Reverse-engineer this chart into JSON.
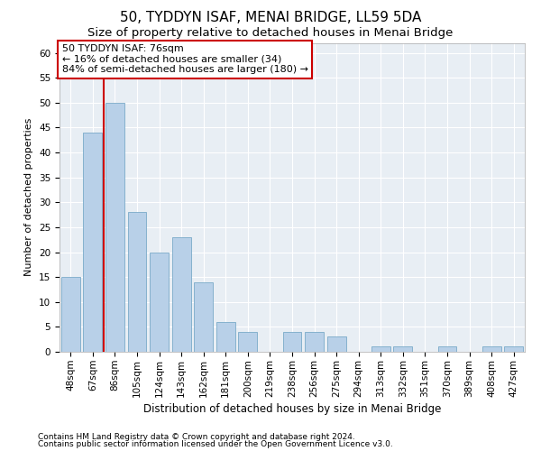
{
  "title1": "50, TYDDYN ISAF, MENAI BRIDGE, LL59 5DA",
  "title2": "Size of property relative to detached houses in Menai Bridge",
  "xlabel": "Distribution of detached houses by size in Menai Bridge",
  "ylabel": "Number of detached properties",
  "categories": [
    "48sqm",
    "67sqm",
    "86sqm",
    "105sqm",
    "124sqm",
    "143sqm",
    "162sqm",
    "181sqm",
    "200sqm",
    "219sqm",
    "238sqm",
    "256sqm",
    "275sqm",
    "294sqm",
    "313sqm",
    "332sqm",
    "351sqm",
    "370sqm",
    "389sqm",
    "408sqm",
    "427sqm"
  ],
  "values": [
    15,
    44,
    50,
    28,
    20,
    23,
    14,
    6,
    4,
    0,
    4,
    4,
    3,
    0,
    1,
    1,
    0,
    1,
    0,
    1,
    1
  ],
  "bar_color": "#b8d0e8",
  "bar_edge_color": "#7aaac8",
  "annotation_line1": "50 TYDDYN ISAF: 76sqm",
  "annotation_line2": "← 16% of detached houses are smaller (34)",
  "annotation_line3": "84% of semi-detached houses are larger (180) →",
  "vline_color": "#cc0000",
  "annotation_box_facecolor": "#ffffff",
  "annotation_box_edgecolor": "#cc0000",
  "ylim": [
    0,
    62
  ],
  "yticks": [
    0,
    5,
    10,
    15,
    20,
    25,
    30,
    35,
    40,
    45,
    50,
    55,
    60
  ],
  "footer1": "Contains HM Land Registry data © Crown copyright and database right 2024.",
  "footer2": "Contains public sector information licensed under the Open Government Licence v3.0.",
  "bg_color": "#ffffff",
  "plot_bg_color": "#e8eef4",
  "grid_color": "#ffffff",
  "title1_fontsize": 11,
  "title2_fontsize": 9.5,
  "xlabel_fontsize": 8.5,
  "ylabel_fontsize": 8,
  "tick_fontsize": 7.5,
  "footer_fontsize": 6.5,
  "vline_x_index": 1.5
}
